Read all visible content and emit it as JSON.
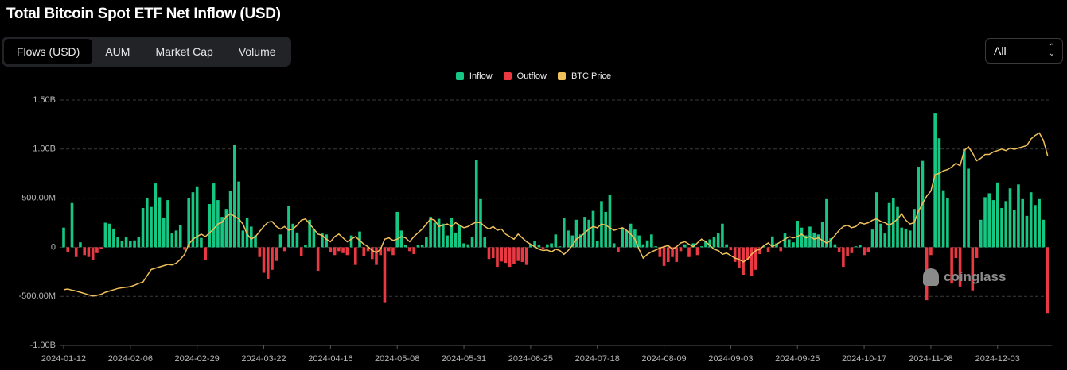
{
  "title": "Total Bitcoin Spot ETF Net Inflow (USD)",
  "tabs": [
    "Flows (USD)",
    "AUM",
    "Market Cap",
    "Volume"
  ],
  "active_tab": 0,
  "range_select": "All",
  "watermark": "coinglass",
  "chart_data": {
    "type": "bar",
    "categories": [
      "2024-01-12",
      null,
      null,
      null,
      null,
      null,
      null,
      null,
      null,
      null,
      null,
      null,
      null,
      null,
      null,
      null,
      "2024-02-06",
      null,
      null,
      null,
      null,
      null,
      null,
      null,
      null,
      null,
      null,
      null,
      null,
      null,
      null,
      null,
      "2024-02-29",
      null,
      null,
      null,
      null,
      null,
      null,
      null,
      null,
      null,
      null,
      null,
      null,
      null,
      null,
      null,
      "2024-03-22",
      null,
      null,
      null,
      null,
      null,
      null,
      null,
      null,
      null,
      null,
      null,
      null,
      null,
      null,
      null,
      "2024-04-16",
      null,
      null,
      null,
      null,
      null,
      null,
      null,
      null,
      null,
      null,
      null,
      null,
      null,
      null,
      null,
      "2024-05-08",
      null,
      null,
      null,
      null,
      null,
      null,
      null,
      null,
      null,
      null,
      null,
      null,
      null,
      null,
      null,
      "2024-05-31",
      null,
      null,
      null,
      null,
      null,
      null,
      null,
      null,
      null,
      null,
      null,
      null,
      null,
      null,
      null,
      "2024-06-25",
      null,
      null,
      null,
      null,
      null,
      null,
      null,
      null,
      null,
      null,
      null,
      null,
      null,
      null,
      null,
      "2024-07-18",
      null,
      null,
      null,
      null,
      null,
      null,
      null,
      null,
      null,
      null,
      null,
      null,
      null,
      null,
      null,
      "2024-08-09",
      null,
      null,
      null,
      null,
      null,
      null,
      null,
      null,
      null,
      null,
      null,
      null,
      null,
      null,
      null,
      "2024-09-03",
      null,
      null,
      null,
      null,
      null,
      null,
      null,
      null,
      null,
      null,
      null,
      null,
      null,
      null,
      null,
      "2024-09-25",
      null,
      null,
      null,
      null,
      null,
      null,
      null,
      null,
      null,
      null,
      null,
      null,
      null,
      null,
      null,
      "2024-10-17",
      null,
      null,
      null,
      null,
      null,
      null,
      null,
      null,
      null,
      null,
      null,
      null,
      null,
      null,
      null,
      "2024-11-08",
      null,
      null,
      null,
      null,
      null,
      null,
      null,
      null,
      null,
      null,
      null,
      null,
      null,
      null,
      null,
      "2024-12-03",
      null,
      null,
      null,
      null,
      null,
      null,
      null,
      null,
      null,
      null,
      null,
      null
    ],
    "series": [
      {
        "name": "Inflow",
        "color": "#16c784",
        "values": [
          200000000,
          null,
          450000000,
          null,
          50000000,
          null,
          null,
          null,
          null,
          null,
          250000000,
          240000000,
          190000000,
          100000000,
          60000000,
          100000000,
          60000000,
          70000000,
          100000000,
          400000000,
          500000000,
          410000000,
          650000000,
          510000000,
          300000000,
          480000000,
          140000000,
          170000000,
          230000000,
          null,
          500000000,
          560000000,
          620000000,
          95000000,
          null,
          440000000,
          650000000,
          480000000,
          310000000,
          390000000,
          570000000,
          1045000000,
          670000000,
          170000000,
          300000000,
          210000000,
          120000000,
          null,
          null,
          null,
          null,
          null,
          130000000,
          null,
          420000000,
          240000000,
          150000000,
          null,
          20000000,
          280000000,
          190000000,
          null,
          140000000,
          130000000,
          null,
          null,
          null,
          null,
          null,
          120000000,
          null,
          160000000,
          null,
          null,
          null,
          null,
          null,
          null,
          null,
          null,
          360000000,
          170000000,
          20000000,
          null,
          null,
          20000000,
          20000000,
          100000000,
          310000000,
          250000000,
          290000000,
          240000000,
          120000000,
          300000000,
          150000000,
          230000000,
          40000000,
          30000000,
          100000000,
          890000000,
          490000000,
          105000000,
          null,
          null,
          null,
          null,
          null,
          null,
          null,
          null,
          null,
          null,
          30000000,
          60000000,
          20000000,
          null,
          30000000,
          40000000,
          130000000,
          10000000,
          300000000,
          170000000,
          120000000,
          280000000,
          130000000,
          310000000,
          280000000,
          370000000,
          60000000,
          470000000,
          360000000,
          530000000,
          40000000,
          null,
          200000000,
          170000000,
          240000000,
          180000000,
          120000000,
          30000000,
          70000000,
          130000000,
          10000000,
          null,
          null,
          null,
          null,
          null,
          null,
          30000000,
          null,
          40000000,
          null,
          10000000,
          60000000,
          80000000,
          100000000,
          140000000,
          240000000,
          30000000,
          null,
          null,
          null,
          null,
          null,
          null,
          null,
          null,
          10000000,
          null,
          110000000,
          40000000,
          null,
          140000000,
          80000000,
          50000000,
          270000000,
          200000000,
          120000000,
          210000000,
          150000000,
          130000000,
          260000000,
          490000000,
          90000000,
          30000000,
          null,
          null,
          null,
          null,
          10000000,
          20000000,
          null,
          null,
          180000000,
          560000000,
          240000000,
          140000000,
          450000000,
          500000000,
          410000000,
          200000000,
          190000000,
          170000000,
          390000000,
          820000000,
          880000000,
          null,
          null,
          1370000000,
          1110000000,
          580000000,
          500000000,
          null,
          null,
          null,
          1000000000,
          800000000,
          null,
          null,
          280000000,
          510000000,
          550000000,
          480000000,
          660000000,
          400000000,
          470000000,
          600000000,
          380000000,
          640000000,
          490000000,
          320000000,
          560000000,
          430000000,
          490000000,
          280000000,
          null
        ]
      },
      {
        "name": "Outflow",
        "color": "#ea3943",
        "values": [
          null,
          -50000000,
          null,
          -100000000,
          null,
          -80000000,
          -100000000,
          -130000000,
          -60000000,
          -20000000,
          null,
          null,
          null,
          null,
          null,
          null,
          null,
          null,
          null,
          null,
          null,
          null,
          null,
          null,
          null,
          null,
          null,
          null,
          null,
          -25000000,
          null,
          null,
          null,
          null,
          -130000000,
          null,
          null,
          null,
          null,
          null,
          null,
          null,
          null,
          null,
          null,
          null,
          null,
          -100000000,
          -260000000,
          -320000000,
          -230000000,
          -140000000,
          null,
          -40000000,
          null,
          null,
          null,
          -90000000,
          null,
          null,
          null,
          -240000000,
          null,
          null,
          -50000000,
          -80000000,
          -40000000,
          -60000000,
          -80000000,
          null,
          -180000000,
          null,
          -90000000,
          -40000000,
          -120000000,
          -180000000,
          -80000000,
          -560000000,
          -40000000,
          -80000000,
          null,
          null,
          null,
          -40000000,
          -70000000,
          null,
          null,
          null,
          null,
          null,
          null,
          null,
          null,
          null,
          null,
          null,
          null,
          null,
          null,
          null,
          null,
          null,
          -120000000,
          -110000000,
          -200000000,
          -145000000,
          -160000000,
          -200000000,
          -170000000,
          -140000000,
          -150000000,
          -180000000,
          null,
          null,
          null,
          -20000000,
          null,
          null,
          null,
          null,
          null,
          null,
          null,
          null,
          null,
          null,
          null,
          null,
          null,
          null,
          null,
          null,
          null,
          -50000000,
          null,
          null,
          null,
          null,
          null,
          null,
          null,
          null,
          null,
          -100000000,
          -190000000,
          -150000000,
          -100000000,
          -150000000,
          -40000000,
          null,
          -100000000,
          null,
          -80000000,
          null,
          null,
          null,
          null,
          null,
          null,
          null,
          -30000000,
          -150000000,
          -210000000,
          -280000000,
          -130000000,
          -290000000,
          -230000000,
          -70000000,
          null,
          -50000000,
          null,
          null,
          -40000000,
          null,
          null,
          null,
          null,
          null,
          null,
          null,
          null,
          null,
          null,
          null,
          null,
          null,
          -50000000,
          -200000000,
          -90000000,
          -60000000,
          null,
          null,
          -80000000,
          -50000000,
          null,
          null,
          null,
          null,
          null,
          null,
          null,
          null,
          null,
          null,
          null,
          null,
          null,
          -540000000,
          -80000000,
          null,
          null,
          null,
          null,
          -370000000,
          -110000000,
          -400000000,
          null,
          null,
          -440000000,
          -110000000,
          null,
          null,
          null,
          null,
          null,
          null,
          null,
          null,
          null,
          null,
          null,
          null,
          null,
          null,
          null,
          null,
          -670000000
        ]
      },
      {
        "name": "BTC Price",
        "color": "#f0c05a",
        "type": "line",
        "axis": "y2",
        "values": [
          42000,
          42300,
          41800,
          41500,
          41000,
          40500,
          40000,
          39500,
          39800,
          40200,
          41000,
          41500,
          42000,
          42500,
          42800,
          43000,
          43200,
          43800,
          44500,
          45000,
          47500,
          50000,
          50500,
          51000,
          51500,
          52000,
          51800,
          52500,
          54000,
          56000,
          60000,
          62000,
          63000,
          64000,
          63000,
          64500,
          66000,
          68000,
          68700,
          71000,
          72000,
          71000,
          70000,
          68000,
          64000,
          62000,
          63000,
          65000,
          67000,
          68700,
          69000,
          67000,
          66000,
          67000,
          65500,
          66000,
          67500,
          69500,
          70000,
          68000,
          66000,
          64000,
          63500,
          62000,
          61000,
          63000,
          64000,
          62500,
          61000,
          62000,
          63000,
          61500,
          60000,
          59000,
          57500,
          56700,
          58000,
          62000,
          62500,
          61500,
          62000,
          63000,
          62500,
          61000,
          63000,
          64500,
          66000,
          68000,
          70000,
          69500,
          67000,
          67500,
          68000,
          67000,
          68500,
          67500,
          66500,
          67000,
          68000,
          68700,
          68500,
          67000,
          66000,
          67000,
          65500,
          66000,
          64000,
          63000,
          62000,
          64000,
          62500,
          61000,
          60000,
          59000,
          58000,
          57500,
          57700,
          57000,
          58000,
          57500,
          56000,
          57500,
          59500,
          62000,
          63000,
          64500,
          66000,
          67000,
          66500,
          68000,
          67500,
          66500,
          65500,
          66000,
          66500,
          65500,
          64000,
          62000,
          58000,
          54500,
          56000,
          57000,
          57700,
          58500,
          59000,
          59500,
          58000,
          59000,
          60500,
          61000,
          60000,
          59000,
          60500,
          62000,
          61000,
          59500,
          58000,
          57500,
          56000,
          56500,
          55500,
          54500,
          54000,
          53000,
          54000,
          56000,
          57500,
          58000,
          59500,
          60500,
          59000,
          60000,
          61000,
          62000,
          63000,
          62500,
          63000,
          64000,
          62500,
          63000,
          62000,
          62500,
          61500,
          60500,
          61500,
          63500,
          65500,
          67000,
          67500,
          66500,
          67000,
          68500,
          68000,
          68500,
          69500,
          70000,
          69000,
          68500,
          67500,
          68500,
          70000,
          72000,
          69500,
          68000,
          68500,
          73000,
          76000,
          79000,
          81000,
          87500,
          88000,
          89000,
          89500,
          90500,
          92000,
          91000,
          97000,
          98500,
          96000,
          93000,
          94000,
          95500,
          95500,
          96500,
          97000,
          97600,
          97000,
          98000,
          97500,
          98000,
          98500,
          99000,
          101600,
          103000,
          104000,
          101000,
          95000
        ]
      }
    ],
    "ylim": [
      -1000000000,
      1500000000
    ],
    "yticks": [
      {
        "value": -1000000000,
        "label": "-1.00B"
      },
      {
        "value": -500000000,
        "label": "-500.00M"
      },
      0,
      {
        "value": 500000000,
        "label": "500.00M"
      },
      {
        "value": 1000000000,
        "label": "1.00B"
      },
      {
        "value": 1500000000,
        "label": "1.50B"
      }
    ],
    "y2lim": [
      20000,
      117000
    ],
    "grid": true
  }
}
